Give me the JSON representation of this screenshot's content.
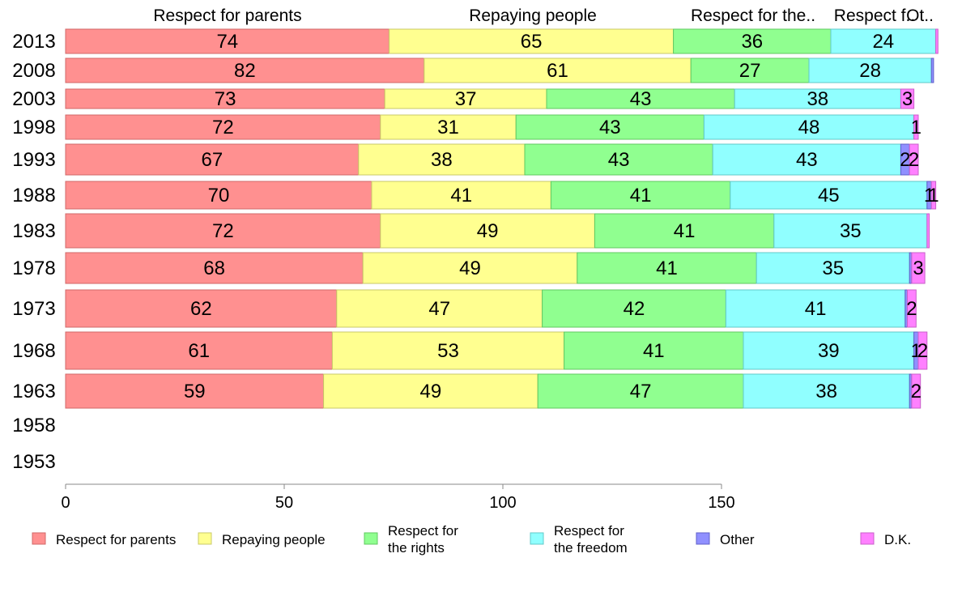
{
  "chart_data": {
    "type": "bar",
    "orientation": "horizontal",
    "stacked": true,
    "categories": [
      "2013",
      "2008",
      "2003",
      "1998",
      "1993",
      "1988",
      "1983",
      "1978",
      "1973",
      "1968",
      "1963",
      "1958",
      "1953"
    ],
    "series": [
      {
        "name": "Respect for parents",
        "color": "#ff9090",
        "values": [
          74,
          82,
          73,
          72,
          67,
          70,
          72,
          68,
          62,
          61,
          59,
          null,
          null
        ]
      },
      {
        "name": "Repaying people",
        "color": "#ffff90",
        "values": [
          65,
          61,
          37,
          31,
          38,
          41,
          49,
          49,
          47,
          53,
          49,
          null,
          null
        ]
      },
      {
        "name": "Respect for the rights",
        "color": "#90ff90",
        "values": [
          36,
          27,
          43,
          43,
          43,
          41,
          41,
          41,
          42,
          41,
          47,
          null,
          null
        ]
      },
      {
        "name": "Respect for the freedom",
        "color": "#90ffff",
        "values": [
          24,
          28,
          38,
          48,
          43,
          45,
          35,
          35,
          41,
          39,
          38,
          null,
          null
        ]
      },
      {
        "name": "Other",
        "color": "#9090ff",
        "values": [
          0,
          0.5,
          0,
          0,
          2,
          1,
          0,
          0.5,
          0.5,
          1,
          0.5,
          null,
          null
        ]
      },
      {
        "name": "D.K.",
        "color": "#ff80ff",
        "values": [
          0.5,
          0,
          3,
          1,
          2,
          1,
          0.5,
          3,
          2,
          2,
          2,
          null,
          null
        ]
      }
    ],
    "segment_labels": [
      [
        "74",
        "65",
        "36",
        "24",
        "",
        ""
      ],
      [
        "82",
        "61",
        "27",
        "28",
        "",
        ""
      ],
      [
        "73",
        "37",
        "43",
        "38",
        "",
        "3"
      ],
      [
        "72",
        "31",
        "43",
        "48",
        "",
        "1"
      ],
      [
        "67",
        "38",
        "43",
        "43",
        "2",
        "2"
      ],
      [
        "70",
        "41",
        "41",
        "45",
        "1",
        "1"
      ],
      [
        "72",
        "49",
        "41",
        "35",
        "",
        ""
      ],
      [
        "68",
        "49",
        "41",
        "35",
        "",
        "3"
      ],
      [
        "62",
        "47",
        "42",
        "41",
        "",
        "2"
      ],
      [
        "61",
        "53",
        "41",
        "39",
        "1",
        "2"
      ],
      [
        "59",
        "49",
        "47",
        "38",
        "",
        "2"
      ],
      [
        "",
        "",
        "",
        "",
        "",
        ""
      ],
      [
        "",
        "",
        "",
        "",
        "",
        ""
      ]
    ],
    "column_headers": [
      "Respect for parents",
      "Repaying people",
      "Respect for the..",
      "Respect f..",
      "Ot.."
    ],
    "x_ticks": [
      "0",
      "50",
      "100",
      "150"
    ],
    "xlim": [
      0,
      200
    ],
    "xlabel": "",
    "ylabel": "",
    "title": "",
    "legend": [
      "Respect for parents",
      "Repaying people",
      "Respect for\nthe rights",
      "Respect for\nthe freedom",
      "Other",
      "D.K."
    ],
    "legend_position": "bottom",
    "grid": false
  }
}
